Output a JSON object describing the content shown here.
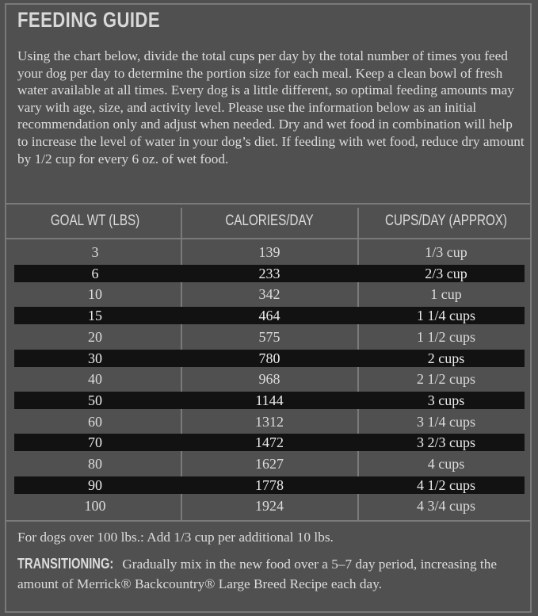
{
  "header": {
    "title": "FEEDING GUIDE"
  },
  "intro": "Using the chart below, divide the total cups per day by the total number of times you feed your dog per day to determine the portion size for each meal. Keep a clean bowl of fresh water available at all times. Every dog is a little different, so optimal feeding amounts may vary with age, size, and activity level. Please use the information below as an initial recommendation only and adjust when needed. Dry and wet food in combination will help to increase the level of water in your dog’s diet. If feeding with wet food, reduce dry amount by 1/2 cup for every 6 oz. of wet food.",
  "table": {
    "columns": [
      "GOAL WT (LBS)",
      "CALORIES/DAY",
      "CUPS/DAY (APPROX)"
    ],
    "rows": [
      [
        3,
        139,
        "1/3 cup"
      ],
      [
        6,
        233,
        "2/3 cup"
      ],
      [
        10,
        342,
        "1 cup"
      ],
      [
        15,
        464,
        "1 1/4 cups"
      ],
      [
        20,
        575,
        "1 1/2 cups"
      ],
      [
        30,
        780,
        "2 cups"
      ],
      [
        40,
        968,
        "2 1/2 cups"
      ],
      [
        50,
        1144,
        "3 cups"
      ],
      [
        60,
        1312,
        "3 1/4 cups"
      ],
      [
        70,
        1472,
        "3 2/3 cups"
      ],
      [
        80,
        1627,
        "4 cups"
      ],
      [
        90,
        1778,
        "4 1/2 cups"
      ],
      [
        100,
        1924,
        "4 3/4 cups"
      ]
    ]
  },
  "footer": {
    "note": "For dogs over 100 lbs.: Add 1/3 cup per additional 10 lbs.",
    "transitioning": {
      "label": "TRANSITIONING:",
      "text": "Gradually mix in the new food over a 5–7 day period, increasing the amount of Merrick® Backcountry® Large Breed Recipe each day."
    }
  }
}
